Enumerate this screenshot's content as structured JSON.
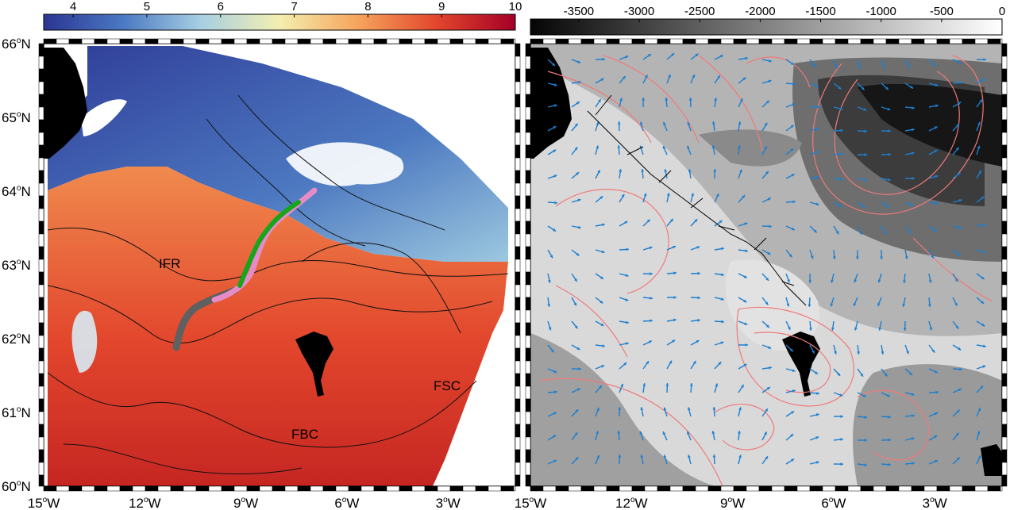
{
  "colorbar_sst": {
    "ticks": [
      "4",
      "5",
      "6",
      "7",
      "8",
      "9",
      "10"
    ],
    "values": [
      4,
      5,
      6,
      7,
      8,
      9,
      10
    ],
    "range": [
      3.6,
      10
    ],
    "stops": [
      "#2b3593",
      "#4a78c2",
      "#a7cfe3",
      "#f3efb0",
      "#f6a45c",
      "#e2462c",
      "#a50026"
    ]
  },
  "colorbar_depth": {
    "ticks": [
      "-3500",
      "-3000",
      "-2500",
      "-2000",
      "-1500",
      "-1000",
      "-500",
      "0"
    ],
    "values": [
      -3500,
      -3000,
      -2500,
      -2000,
      -1500,
      -1000,
      -500,
      0
    ],
    "range": [
      -3900,
      0
    ],
    "stops": [
      "#050505",
      "#ffffff"
    ]
  },
  "lat_labels": [
    {
      "deg": "66",
      "suffix": "N",
      "value": 66
    },
    {
      "deg": "65",
      "suffix": "N",
      "value": 65
    },
    {
      "deg": "64",
      "suffix": "N",
      "value": 64
    },
    {
      "deg": "63",
      "suffix": "N",
      "value": 63
    },
    {
      "deg": "62",
      "suffix": "N",
      "value": 62
    },
    {
      "deg": "61",
      "suffix": "N",
      "value": 61
    },
    {
      "deg": "60",
      "suffix": "N",
      "value": 60
    }
  ],
  "lon_labels_left": [
    {
      "deg": "15",
      "suffix": "W",
      "value": -15
    },
    {
      "deg": "12",
      "suffix": "W",
      "value": -12
    },
    {
      "deg": "9",
      "suffix": "W",
      "value": -9
    },
    {
      "deg": "6",
      "suffix": "W",
      "value": -6
    },
    {
      "deg": "3",
      "suffix": "W",
      "value": -3
    }
  ],
  "lon_labels_right": [
    {
      "deg": "15",
      "suffix": "W",
      "value": -15
    },
    {
      "deg": "12",
      "suffix": "W",
      "value": -12
    },
    {
      "deg": "9",
      "suffix": "W",
      "value": -9
    },
    {
      "deg": "6",
      "suffix": "W",
      "value": -6
    },
    {
      "deg": "3",
      "suffix": "W",
      "value": -3
    }
  ],
  "annotations": {
    "ifr": "IFR",
    "fbc": "FBC",
    "fsc": "FSC"
  },
  "colors": {
    "ocean_warm": "#e8552e",
    "ocean_cold": "#3b56a8",
    "land": "#000000",
    "track_pink": "#e58cc8",
    "track_green": "#18a51c",
    "track_grey": "#606060",
    "streamline": "#f07a7a",
    "vector": "#1c7fd0"
  }
}
